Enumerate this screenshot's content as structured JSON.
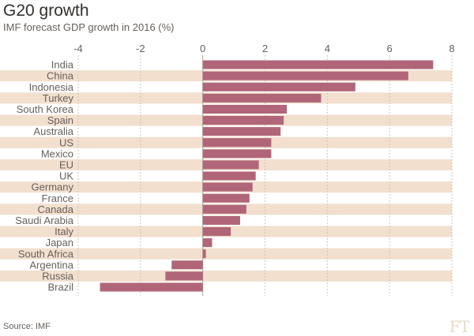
{
  "header": {
    "title": "G20 growth",
    "subtitle": "IMF forecast GDP growth in 2016 (%)"
  },
  "footer": {
    "source": "Source: IMF",
    "logo": "FT"
  },
  "colors": {
    "bar": "#b06678",
    "band": "#f2dfce",
    "grid": "#cec6b9",
    "zero": "#a7a59b"
  },
  "chart_data": {
    "type": "bar",
    "orientation": "horizontal",
    "title": "G20 growth",
    "subtitle": "IMF forecast GDP growth in 2016 (%)",
    "xlabel": "",
    "ylabel": "",
    "xlim": [
      -4,
      8
    ],
    "xticks": [
      -4,
      -2,
      0,
      2,
      4,
      6,
      8
    ],
    "tick_labels": [
      "-4",
      "-2",
      "0",
      "2",
      "4",
      "6",
      "8"
    ],
    "grid": true,
    "categories": [
      "India",
      "China",
      "Indonesia",
      "Turkey",
      "South Korea",
      "Spain",
      "Australia",
      "US",
      "Mexico",
      "EU",
      "UK",
      "Germany",
      "France",
      "Canada",
      "Saudi Arabia",
      "Italy",
      "Japan",
      "South Africa",
      "Argentina",
      "Russia",
      "Brazil"
    ],
    "values": [
      7.4,
      6.6,
      4.9,
      3.8,
      2.7,
      2.6,
      2.5,
      2.2,
      2.2,
      1.8,
      1.7,
      1.6,
      1.5,
      1.4,
      1.2,
      0.9,
      0.3,
      0.1,
      -1.0,
      -1.2,
      -3.3
    ]
  }
}
